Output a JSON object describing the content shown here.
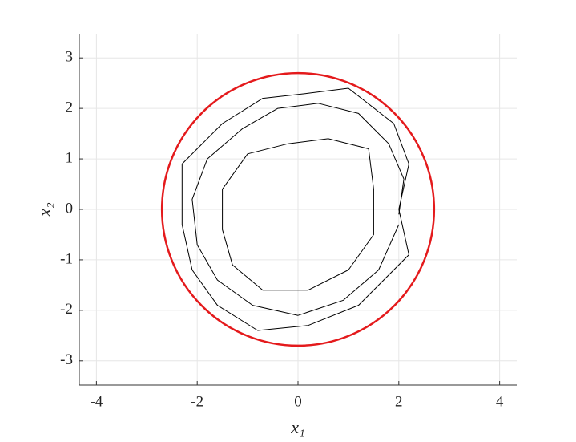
{
  "chart_data": {
    "type": "line",
    "xlabel": "x₁",
    "ylabel": "x₂",
    "xlim": [
      -4.34,
      4.34
    ],
    "ylim": [
      -3.48,
      3.48
    ],
    "xticks": [
      -4,
      -2,
      0,
      2,
      4
    ],
    "yticks": [
      -3,
      -2,
      -1,
      0,
      1,
      2,
      3
    ],
    "grid": true,
    "circle": {
      "center": [
        0,
        0
      ],
      "radius": 2.7,
      "color": "#e41a1c"
    },
    "series": [
      {
        "color": "#000000",
        "x": [
          2.0,
          2.1,
          1.8,
          1.2,
          0.4,
          -0.4,
          -1.1,
          -1.8,
          -2.1,
          -2.0,
          -1.6,
          -0.9,
          0,
          0.9,
          1.6,
          2.0
        ],
        "values": [
          -0.1,
          0.6,
          1.3,
          1.9,
          2.1,
          2.0,
          1.6,
          1.0,
          0.2,
          -0.7,
          -1.4,
          -1.9,
          -2.1,
          -1.8,
          -1.2,
          -0.3
        ]
      },
      {
        "color": "#000000",
        "x": [
          1.5,
          1.4,
          0.6,
          -0.2,
          -1.0,
          -1.5,
          -1.5,
          -1.3,
          -0.7,
          0.2,
          1.0,
          1.5,
          1.5
        ],
        "values": [
          0.4,
          1.2,
          1.4,
          1.3,
          1.1,
          0.4,
          -0.4,
          -1.1,
          -1.6,
          -1.6,
          -1.2,
          -0.5,
          0.4
        ]
      },
      {
        "color": "#000000",
        "x": [
          2.0,
          2.2,
          1.9,
          1.0,
          0.2,
          -0.7,
          -1.5,
          -2.3,
          -2.3,
          -2.1,
          -1.6,
          -0.8,
          0.2,
          1.2,
          2.2,
          2.0
        ],
        "values": [
          0,
          0.9,
          1.7,
          2.4,
          2.3,
          2.2,
          1.7,
          0.9,
          -0.3,
          -1.2,
          -1.9,
          -2.4,
          -2.3,
          -1.9,
          -0.9,
          0
        ]
      }
    ]
  }
}
